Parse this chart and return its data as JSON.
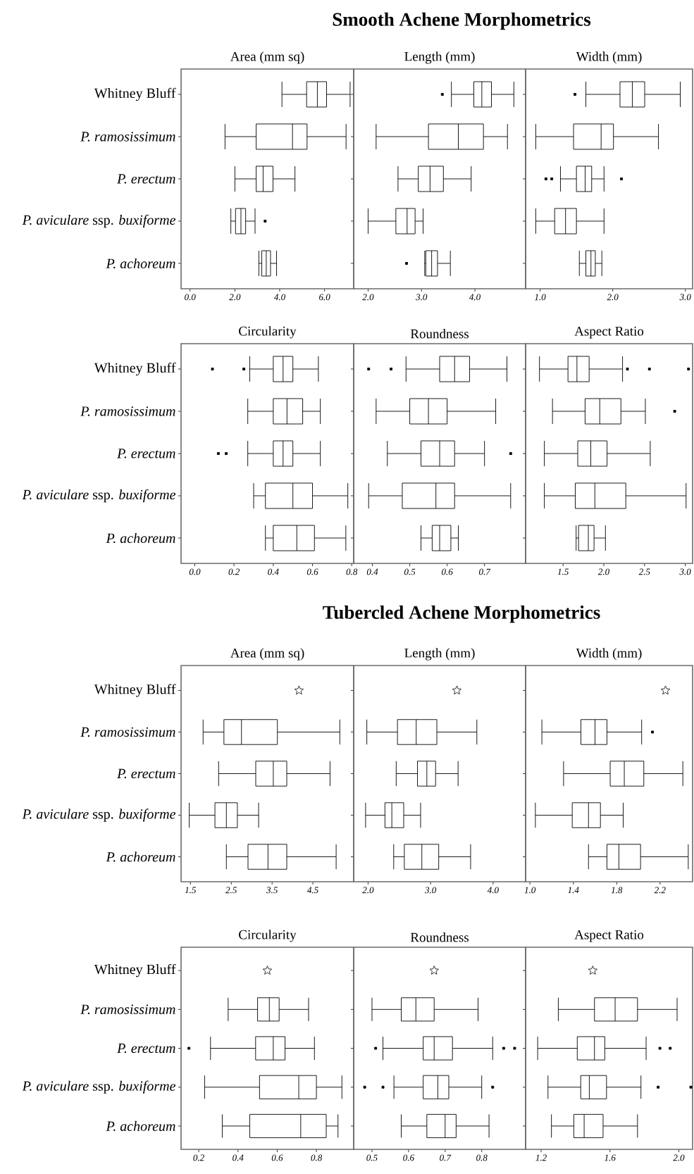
{
  "chart_data": [
    {
      "type": "box",
      "orientation": "horizontal",
      "title": "Area (mm sq)",
      "annotations": [
        "Smooth Achene Morphometrics"
      ],
      "categories": [
        "Whitney Bluff",
        "*P. ramosissimum*",
        "*P. erectum*",
        "*P. aviculare* ssp. *buxiforme*",
        "*P. achoreum*"
      ],
      "color": "#000000",
      "xlim": [
        -0.4,
        7.3
      ],
      "xticks": [
        {
          "value": 0,
          "label": "0.0"
        },
        {
          "value": 2,
          "label": "2.0"
        },
        {
          "value": 4,
          "label": "4.0"
        },
        {
          "value": 6,
          "label": "6.0"
        }
      ],
      "boxes": [
        {
          "low": 4.1,
          "q1": 5.2,
          "median": 5.68,
          "q3": 6.09,
          "high": 7.14
        },
        {
          "low": 1.56,
          "q1": 2.95,
          "median": 4.57,
          "q3": 5.22,
          "high": 6.96
        },
        {
          "low": 2.0,
          "q1": 2.95,
          "median": 3.26,
          "q3": 3.7,
          "high": 4.68
        },
        {
          "low": 1.82,
          "q1": 2.03,
          "median": 2.27,
          "q3": 2.48,
          "high": 2.9,
          "outliers": [
            3.35
          ]
        },
        {
          "low": 3.07,
          "q1": 3.2,
          "median": 3.4,
          "q3": 3.59,
          "high": 3.86
        }
      ]
    },
    {
      "type": "box",
      "orientation": "horizontal",
      "title": "Length (mm)",
      "categories": [
        "Whitney Bluff",
        "*P. ramosissimum*",
        "*P. erectum*",
        "*P. aviculare* ssp. *buxiforme*",
        "*P. achoreum*"
      ],
      "color": "#000000",
      "xlim": [
        1.73,
        4.95
      ],
      "xticks": [
        {
          "value": 2,
          "label": "2.0"
        },
        {
          "value": 3,
          "label": "3.0"
        },
        {
          "value": 4,
          "label": "4.0"
        }
      ],
      "tick_labels": "x",
      "boxes": [
        {
          "low": 3.56,
          "q1": 3.98,
          "median": 4.13,
          "q3": 4.31,
          "high": 4.73,
          "outliers": [
            3.39
          ]
        },
        {
          "low": 2.15,
          "q1": 3.13,
          "median": 3.69,
          "q3": 4.16,
          "high": 4.61
        },
        {
          "low": 2.56,
          "q1": 2.94,
          "median": 3.16,
          "q3": 3.41,
          "high": 3.93
        },
        {
          "low": 2.0,
          "q1": 2.52,
          "median": 2.73,
          "q3": 2.88,
          "high": 3.03
        },
        {
          "low": 3.06,
          "q1": 3.08,
          "median": 3.19,
          "q3": 3.3,
          "high": 3.54,
          "outliers": [
            2.72
          ]
        }
      ]
    },
    {
      "type": "box",
      "orientation": "horizontal",
      "title": "Width (mm)",
      "categories": [
        "Whitney Bluff",
        "*P. ramosissimum*",
        "*P. erectum*",
        "*P. aviculare* ssp. *buxiforme*",
        "*P. achoreum*"
      ],
      "color": "#000000",
      "xlim": [
        0.8,
        3.1
      ],
      "xticks": [
        {
          "value": 1,
          "label": "1.0"
        },
        {
          "value": 2,
          "label": "2.0"
        },
        {
          "value": 3,
          "label": "3.0"
        }
      ],
      "tick_labels": "x",
      "boxes": [
        {
          "low": 1.63,
          "q1": 2.1,
          "median": 2.27,
          "q3": 2.44,
          "high": 2.93,
          "outliers": [
            1.48
          ]
        },
        {
          "low": 0.94,
          "q1": 1.46,
          "median": 1.84,
          "q3": 2.01,
          "high": 2.63
        },
        {
          "low": 1.28,
          "q1": 1.5,
          "median": 1.62,
          "q3": 1.71,
          "high": 1.88,
          "outliers": [
            1.08,
            1.16,
            2.12
          ]
        },
        {
          "low": 0.94,
          "q1": 1.2,
          "median": 1.35,
          "q3": 1.5,
          "high": 1.88
        },
        {
          "low": 1.54,
          "q1": 1.63,
          "median": 1.7,
          "q3": 1.76,
          "high": 1.85
        }
      ]
    },
    {
      "type": "box",
      "orientation": "horizontal",
      "title": "Circularity",
      "categories": [
        "Whitney Bluff",
        "*P. ramosissimum*",
        "*P. erectum*",
        "*P. aviculare* ssp. *buxiforme*",
        "*P. achoreum*"
      ],
      "color": "#000000",
      "xlim": [
        -0.07,
        0.81
      ],
      "xticks": [
        {
          "value": 0,
          "label": "0.0"
        },
        {
          "value": 0.2,
          "label": "0.2"
        },
        {
          "value": 0.4,
          "label": "0.4"
        },
        {
          "value": 0.6,
          "label": "0.6"
        },
        {
          "value": 0.8,
          "label": "0.8"
        }
      ],
      "boxes": [
        {
          "low": 0.28,
          "q1": 0.4,
          "median": 0.45,
          "q3": 0.5,
          "high": 0.63,
          "outliers": [
            0.09,
            0.25
          ]
        },
        {
          "low": 0.27,
          "q1": 0.4,
          "median": 0.47,
          "q3": 0.55,
          "high": 0.64
        },
        {
          "low": 0.27,
          "q1": 0.4,
          "median": 0.45,
          "q3": 0.5,
          "high": 0.64,
          "outliers": [
            0.12,
            0.16
          ]
        },
        {
          "low": 0.3,
          "q1": 0.36,
          "median": 0.5,
          "q3": 0.6,
          "high": 0.78
        },
        {
          "low": 0.36,
          "q1": 0.4,
          "median": 0.52,
          "q3": 0.61,
          "high": 0.77
        }
      ]
    },
    {
      "type": "box",
      "orientation": "horizontal",
      "title": "Roundness",
      "categories": [
        "Whitney Bluff",
        "*P. ramosissimum*",
        "*P. erectum*",
        "*P. aviculare* ssp. *buxiforme*",
        "*P. achoreum*"
      ],
      "color": "#000000",
      "xlim": [
        0.35,
        0.81
      ],
      "xticks": [
        {
          "value": 0.4,
          "label": "0.4"
        },
        {
          "value": 0.5,
          "label": "0.5"
        },
        {
          "value": 0.6,
          "label": "0.6"
        },
        {
          "value": 0.7,
          "label": "0.7"
        }
      ],
      "tick_labels": "x",
      "boxes": [
        {
          "low": 0.49,
          "q1": 0.58,
          "median": 0.62,
          "q3": 0.66,
          "high": 0.76,
          "outliers": [
            0.39,
            0.45
          ]
        },
        {
          "low": 0.41,
          "q1": 0.5,
          "median": 0.55,
          "q3": 0.6,
          "high": 0.73
        },
        {
          "low": 0.44,
          "q1": 0.53,
          "median": 0.58,
          "q3": 0.62,
          "high": 0.7,
          "outliers": [
            0.77
          ]
        },
        {
          "low": 0.39,
          "q1": 0.48,
          "median": 0.57,
          "q3": 0.62,
          "high": 0.77
        },
        {
          "low": 0.53,
          "q1": 0.56,
          "median": 0.58,
          "q3": 0.61,
          "high": 0.63
        }
      ]
    },
    {
      "type": "box",
      "orientation": "horizontal",
      "title": "Aspect Ratio",
      "categories": [
        "Whitney Bluff",
        "*P. ramosissimum*",
        "*P. erectum*",
        "*P. aviculare* ssp. *buxiforme*",
        "*P. achoreum*"
      ],
      "color": "#000000",
      "xlim": [
        1.04,
        3.09
      ],
      "xticks": [
        {
          "value": 1.5,
          "label": "1.5"
        },
        {
          "value": 2,
          "label": "2.0"
        },
        {
          "value": 2.5,
          "label": "2.5"
        },
        {
          "value": 3,
          "label": "3.0"
        }
      ],
      "tick_labels": "x",
      "boxes": [
        {
          "low": 1.21,
          "q1": 1.56,
          "median": 1.67,
          "q3": 1.82,
          "high": 2.23,
          "outliers": [
            2.29,
            2.56,
            3.04
          ]
        },
        {
          "low": 1.37,
          "q1": 1.77,
          "median": 1.95,
          "q3": 2.21,
          "high": 2.51,
          "outliers": [
            2.87
          ]
        },
        {
          "low": 1.27,
          "q1": 1.68,
          "median": 1.84,
          "q3": 2.04,
          "high": 2.57
        },
        {
          "low": 1.27,
          "q1": 1.65,
          "median": 1.89,
          "q3": 2.27,
          "high": 3.01
        },
        {
          "low": 1.66,
          "q1": 1.69,
          "median": 1.81,
          "q3": 1.88,
          "high": 2.02
        }
      ]
    },
    {
      "type": "box",
      "orientation": "horizontal",
      "title": "Area (mm sq)",
      "annotations": [
        "Tubercled Achene Morphometrics"
      ],
      "categories": [
        "Whitney Bluff",
        "*P. ramosissimum*",
        "*P. erectum*",
        "*P. aviculare* ssp. *buxiforme*",
        "*P. achoreum*"
      ],
      "color": "#000000",
      "xlim": [
        1.27,
        5.5
      ],
      "xticks": [
        1.5,
        2.5,
        3.5,
        4.5
      ],
      "boxes": [
        null,
        {
          "low": 1.81,
          "q1": 2.32,
          "median": 2.75,
          "q3": 3.63,
          "high": 5.16
        },
        {
          "low": 2.19,
          "q1": 3.1,
          "median": 3.53,
          "q3": 3.86,
          "high": 4.92
        },
        {
          "low": 1.47,
          "q1": 2.1,
          "median": 2.38,
          "q3": 2.65,
          "high": 3.17
        },
        {
          "low": 2.38,
          "q1": 2.91,
          "median": 3.4,
          "q3": 3.86,
          "high": 5.07
        }
      ],
      "series": [
        {
          "type": "scatter",
          "marker": "star",
          "x": [
            "Whitney Bluff"
          ],
          "values": [
            4.16
          ]
        }
      ]
    },
    {
      "type": "box",
      "orientation": "horizontal",
      "title": "Length (mm)",
      "categories": [
        "Whitney Bluff",
        "*P. ramosissimum*",
        "*P. erectum*",
        "*P. aviculare* ssp. *buxiforme*",
        "*P. achoreum*"
      ],
      "color": "#000000",
      "xlim": [
        1.77,
        4.52
      ],
      "xticks": [
        {
          "value": 2,
          "label": "2.0"
        },
        {
          "value": 3,
          "label": "3.0"
        },
        {
          "value": 4,
          "label": "4.0"
        }
      ],
      "tick_labels": "x",
      "boxes": [
        null,
        {
          "low": 1.98,
          "q1": 2.47,
          "median": 2.77,
          "q3": 3.1,
          "high": 3.74
        },
        {
          "low": 2.45,
          "q1": 2.79,
          "median": 2.94,
          "q3": 3.08,
          "high": 3.44
        },
        {
          "low": 1.96,
          "q1": 2.27,
          "median": 2.38,
          "q3": 2.57,
          "high": 2.84
        },
        {
          "low": 2.41,
          "q1": 2.58,
          "median": 2.86,
          "q3": 3.13,
          "high": 3.64
        }
      ],
      "series": [
        {
          "type": "scatter",
          "marker": "star",
          "x": [
            "Whitney Bluff"
          ],
          "values": [
            3.42
          ]
        }
      ]
    },
    {
      "type": "box",
      "orientation": "horizontal",
      "title": "Width (mm)",
      "categories": [
        "Whitney Bluff",
        "*P. ramosissimum*",
        "*P. erectum*",
        "*P. aviculare* ssp. *buxiforme*",
        "*P. achoreum*"
      ],
      "color": "#000000",
      "xlim": [
        0.96,
        2.5
      ],
      "xticks": [
        {
          "value": 1,
          "label": "1.0"
        },
        1.4,
        1.8,
        2.2
      ],
      "tick_labels": "x",
      "boxes": [
        null,
        {
          "low": 1.11,
          "q1": 1.47,
          "median": 1.6,
          "q3": 1.71,
          "high": 2.03,
          "outliers": [
            2.13
          ]
        },
        {
          "low": 1.31,
          "q1": 1.74,
          "median": 1.87,
          "q3": 2.05,
          "high": 2.41
        },
        {
          "low": 1.05,
          "q1": 1.39,
          "median": 1.54,
          "q3": 1.65,
          "high": 1.86
        },
        {
          "low": 1.54,
          "q1": 1.71,
          "median": 1.82,
          "q3": 2.02,
          "high": 2.46
        }
      ],
      "series": [
        {
          "type": "scatter",
          "marker": "star",
          "x": [
            "Whitney Bluff"
          ],
          "values": [
            2.25
          ]
        }
      ]
    },
    {
      "type": "box",
      "orientation": "horizontal",
      "title": "Circularity",
      "categories": [
        "Whitney Bluff",
        "*P. ramosissimum*",
        "*P. erectum*",
        "*P. aviculare* ssp. *buxiforme*",
        "*P. achoreum*"
      ],
      "color": "#000000",
      "xlim": [
        0.11,
        0.99
      ],
      "xticks": [
        0.2,
        0.4,
        0.6,
        0.8
      ],
      "boxes": [
        null,
        {
          "low": 0.35,
          "q1": 0.5,
          "median": 0.56,
          "q3": 0.61,
          "high": 0.76
        },
        {
          "low": 0.26,
          "q1": 0.49,
          "median": 0.58,
          "q3": 0.64,
          "high": 0.79,
          "outliers": [
            0.15
          ]
        },
        {
          "low": 0.23,
          "q1": 0.51,
          "median": 0.71,
          "q3": 0.8,
          "high": 0.93
        },
        {
          "low": 0.32,
          "q1": 0.46,
          "median": 0.72,
          "q3": 0.85,
          "high": 0.91
        }
      ],
      "series": [
        {
          "type": "scatter",
          "marker": "star",
          "x": [
            "Whitney Bluff"
          ],
          "values": [
            0.55
          ]
        }
      ]
    },
    {
      "type": "box",
      "orientation": "horizontal",
      "title": "Roundness",
      "categories": [
        "Whitney Bluff",
        "*P. ramosissimum*",
        "*P. erectum*",
        "*P. aviculare* ssp. *buxiforme*",
        "*P. achoreum*"
      ],
      "color": "#000000",
      "xlim": [
        0.45,
        0.92
      ],
      "xticks": [
        0.5,
        0.6,
        0.7,
        0.8
      ],
      "tick_labels": "x",
      "boxes": [
        null,
        {
          "low": 0.5,
          "q1": 0.58,
          "median": 0.62,
          "q3": 0.67,
          "high": 0.79
        },
        {
          "low": 0.53,
          "q1": 0.64,
          "median": 0.67,
          "q3": 0.72,
          "high": 0.83,
          "outliers": [
            0.51,
            0.86,
            0.89
          ]
        },
        {
          "low": 0.56,
          "q1": 0.64,
          "median": 0.68,
          "q3": 0.71,
          "high": 0.8,
          "outliers": [
            0.48,
            0.53,
            0.83
          ]
        },
        {
          "low": 0.58,
          "q1": 0.65,
          "median": 0.7,
          "q3": 0.73,
          "high": 0.82
        }
      ],
      "series": [
        {
          "type": "scatter",
          "marker": "star",
          "x": [
            "Whitney Bluff"
          ],
          "values": [
            0.67
          ]
        }
      ]
    },
    {
      "type": "box",
      "orientation": "horizontal",
      "title": "Aspect Ratio",
      "categories": [
        "Whitney Bluff",
        "*P. ramosissimum*",
        "*P. erectum*",
        "*P. aviculare* ssp. *buxiforme*",
        "*P. achoreum*"
      ],
      "color": "#000000",
      "xlim": [
        1.11,
        2.08
      ],
      "xticks": [
        1.2,
        1.6,
        {
          "value": 2,
          "label": "2.0"
        }
      ],
      "tick_labels": "x",
      "boxes": [
        null,
        {
          "low": 1.3,
          "q1": 1.51,
          "median": 1.63,
          "q3": 1.76,
          "high": 1.99
        },
        {
          "low": 1.18,
          "q1": 1.41,
          "median": 1.51,
          "q3": 1.57,
          "high": 1.81,
          "outliers": [
            1.89,
            1.95
          ]
        },
        {
          "low": 1.24,
          "q1": 1.43,
          "median": 1.48,
          "q3": 1.58,
          "high": 1.78,
          "outliers": [
            1.88,
            2.07
          ]
        },
        {
          "low": 1.26,
          "q1": 1.39,
          "median": 1.45,
          "q3": 1.56,
          "high": 1.76
        }
      ],
      "series": [
        {
          "type": "scatter",
          "marker": "star",
          "x": [
            "Whitney Bluff"
          ],
          "values": [
            1.5
          ]
        }
      ]
    }
  ]
}
